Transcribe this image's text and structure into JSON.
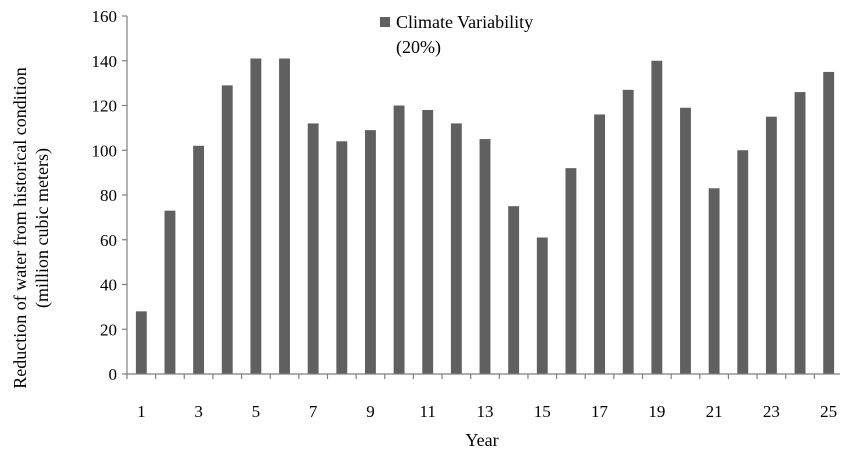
{
  "chart_data": {
    "type": "bar",
    "categories": [
      "1",
      "2",
      "3",
      "4",
      "5",
      "6",
      "7",
      "8",
      "9",
      "10",
      "11",
      "12",
      "13",
      "14",
      "15",
      "16",
      "17",
      "18",
      "19",
      "20",
      "21",
      "22",
      "23",
      "24",
      "25"
    ],
    "tick_labels_shown": [
      "1",
      "3",
      "5",
      "7",
      "9",
      "11",
      "13",
      "15",
      "17",
      "19",
      "21",
      "23",
      "25"
    ],
    "series": [
      {
        "name": "Climate Variability (20%)",
        "color": "#606060",
        "values": [
          28,
          73,
          102,
          129,
          141,
          141,
          112,
          104,
          109,
          120,
          118,
          112,
          105,
          75,
          61,
          92,
          116,
          127,
          140,
          119,
          83,
          100,
          115,
          126,
          135
        ]
      }
    ],
    "xlabel": "Year",
    "ylabel_line1": "Reduction of water from historical condition",
    "ylabel_line2": "(million cubic meters)",
    "ylim": [
      0,
      160
    ],
    "yticks": [
      0,
      20,
      40,
      60,
      80,
      100,
      120,
      140,
      160
    ],
    "grid": false,
    "legend": {
      "position": "top-center",
      "line1": "Climate Variability",
      "line2": "(20%)"
    }
  }
}
